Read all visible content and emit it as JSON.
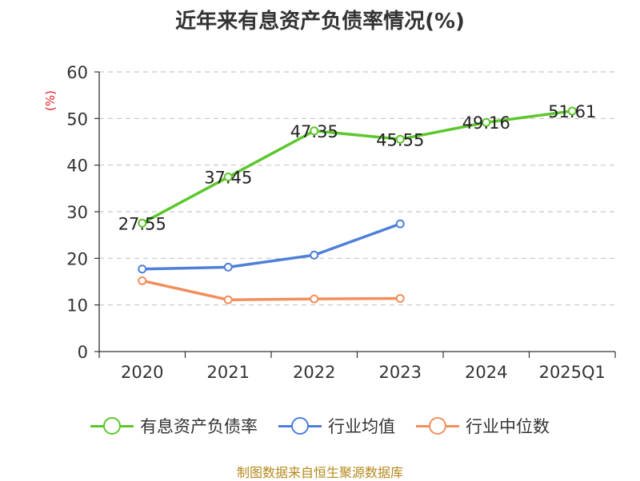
{
  "chart_data": {
    "type": "line",
    "title": "近年来有息资产负债率情况(%)",
    "ylabel": "(%)",
    "xlabel": "",
    "categories": [
      "2020",
      "2021",
      "2022",
      "2023",
      "2024",
      "2025Q1"
    ],
    "ylim": [
      0,
      60
    ],
    "yticks": [
      0,
      10,
      20,
      30,
      40,
      50,
      60
    ],
    "grid": true,
    "legend_position": "bottom",
    "series": [
      {
        "name": "有息资产负债率",
        "color": "#5cc72c",
        "values": [
          27.55,
          37.45,
          47.35,
          45.55,
          49.16,
          51.61
        ],
        "labels": [
          "27.55",
          "37.45",
          "47.35",
          "45.55",
          "49.16",
          "51.61"
        ]
      },
      {
        "name": "行业均值",
        "color": "#4f7fd9",
        "values": [
          17.7,
          18.1,
          20.7,
          27.4,
          null,
          null
        ]
      },
      {
        "name": "行业中位数",
        "color": "#f28f5c",
        "values": [
          15.2,
          11.1,
          11.3,
          11.4,
          null,
          null
        ]
      }
    ]
  },
  "source": "制图数据来自恒生聚源数据库"
}
